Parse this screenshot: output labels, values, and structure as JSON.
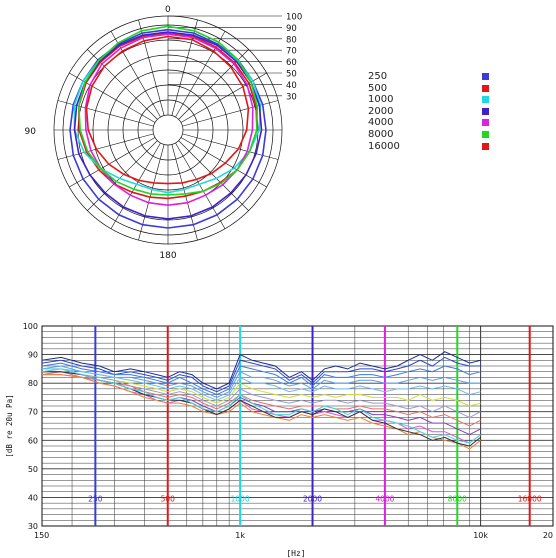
{
  "chart_data": [
    {
      "type": "polar",
      "angle_labels": [
        "0",
        "90",
        "180"
      ],
      "radial_ticks": [
        30,
        40,
        50,
        60,
        70,
        80,
        90,
        100
      ],
      "radial_labels": [
        "30",
        "40",
        "50",
        "60",
        "70",
        "80",
        "90",
        "100"
      ],
      "rlim": [
        0,
        100
      ],
      "legend_placement": "right",
      "angles_deg": [
        0,
        15,
        30,
        45,
        60,
        75,
        90,
        105,
        120,
        135,
        150,
        165,
        180,
        195,
        210,
        225,
        240,
        255,
        270,
        285,
        300,
        315,
        330,
        345,
        360
      ],
      "series": [
        {
          "name": "250",
          "color": "#3b3bd6",
          "values": [
            88,
            88,
            87,
            87,
            86,
            86,
            86,
            86,
            86,
            86,
            86,
            86,
            86,
            86,
            86,
            86,
            86,
            86,
            86,
            86,
            86,
            87,
            87,
            88,
            88
          ]
        },
        {
          "name": "500",
          "color": "#e01818",
          "values": [
            85,
            85,
            84,
            83,
            82,
            80,
            78,
            74,
            70,
            65,
            62,
            60,
            60,
            61,
            63,
            67,
            70,
            74,
            78,
            81,
            83,
            84,
            85,
            85,
            85
          ]
        },
        {
          "name": "1000",
          "color": "#20d8e0",
          "values": [
            86,
            86,
            86,
            86,
            86,
            84,
            80,
            74,
            67,
            60,
            55,
            54,
            55,
            54,
            55,
            60,
            68,
            76,
            82,
            85,
            86,
            86,
            86,
            86,
            86
          ]
        },
        {
          "name": "2000",
          "color": "#4020c8",
          "values": [
            86,
            86,
            86,
            85,
            84,
            83,
            82,
            80,
            79,
            78,
            78,
            78,
            78,
            78,
            78,
            78,
            79,
            81,
            82,
            83,
            84,
            85,
            86,
            86,
            86
          ]
        },
        {
          "name": "4000",
          "color": "#e020e0",
          "values": [
            84,
            84,
            83,
            82,
            80,
            77,
            74,
            72,
            70,
            68,
            66,
            66,
            66,
            66,
            66,
            67,
            68,
            70,
            72,
            75,
            79,
            82,
            83,
            84,
            84
          ]
        },
        {
          "name": "8000",
          "color": "#20d820",
          "values": [
            91,
            90,
            89,
            87,
            84,
            81,
            78,
            74,
            70,
            66,
            62,
            58,
            57,
            58,
            60,
            64,
            68,
            73,
            77,
            81,
            84,
            86,
            88,
            90,
            91
          ]
        },
        {
          "name": "16000",
          "color": "#e01818",
          "values": [
            82,
            82,
            80,
            78,
            76,
            73,
            69,
            64,
            58,
            54,
            50,
            48,
            47,
            48,
            51,
            55,
            60,
            65,
            70,
            74,
            77,
            79,
            80,
            81,
            82
          ]
        }
      ]
    },
    {
      "type": "line",
      "xlabel": "[Hz]",
      "ylabel": "[dB re 20u Pa]",
      "xscale": "log",
      "xlim": [
        150,
        20000
      ],
      "ylim": [
        30,
        100
      ],
      "x_tick_labels": [
        "150",
        "1k",
        "10k",
        "20"
      ],
      "y_ticks": [
        30,
        40,
        50,
        60,
        70,
        80,
        90,
        100
      ],
      "y_tick_labels": [
        "30",
        "40",
        "50",
        "60",
        "70",
        "80",
        "90",
        "100"
      ],
      "grid": true,
      "markers": [
        {
          "label": "250",
          "x": 250,
          "color": "#3b3bd6"
        },
        {
          "label": "500",
          "x": 500,
          "color": "#e01818"
        },
        {
          "label": "1000",
          "x": 1000,
          "color": "#20d8e0"
        },
        {
          "label": "2000",
          "x": 2000,
          "color": "#4020c8"
        },
        {
          "label": "4000",
          "x": 4000,
          "color": "#e020e0"
        },
        {
          "label": "8000",
          "x": 8000,
          "color": "#20d820"
        },
        {
          "label": "16000",
          "x": 16000,
          "color": "#e01818"
        }
      ],
      "x": [
        150,
        180,
        220,
        260,
        300,
        350,
        400,
        450,
        500,
        560,
        630,
        700,
        800,
        900,
        1000,
        1120,
        1250,
        1400,
        1600,
        1800,
        2000,
        2240,
        2500,
        2800,
        3150,
        3550,
        4000,
        4500,
        5000,
        5600,
        6300,
        7100,
        8000,
        9000,
        10000
      ],
      "series": [
        {
          "color": "#1a2a9a",
          "values": [
            88,
            89,
            87,
            86,
            84,
            85,
            84,
            83,
            82,
            84,
            83,
            80,
            78,
            80,
            90,
            88,
            87,
            86,
            82,
            84,
            81,
            85,
            86,
            85,
            87,
            86,
            85,
            86,
            88,
            90,
            88,
            91,
            89,
            87,
            88
          ]
        },
        {
          "color": "#2a4ad0",
          "values": [
            87,
            88,
            86,
            85,
            83,
            84,
            83,
            82,
            81,
            83,
            82,
            79,
            77,
            79,
            88,
            87,
            86,
            85,
            81,
            83,
            80,
            84,
            84,
            84,
            85,
            85,
            84,
            85,
            86,
            88,
            86,
            89,
            87,
            86,
            86
          ]
        },
        {
          "color": "#3a7ae8",
          "values": [
            86,
            87,
            85,
            84,
            83,
            83,
            82,
            81,
            80,
            82,
            80,
            78,
            76,
            78,
            86,
            85,
            84,
            83,
            80,
            82,
            79,
            83,
            82,
            82,
            83,
            83,
            82,
            83,
            84,
            85,
            84,
            86,
            85,
            83,
            84
          ]
        },
        {
          "color": "#5aa0f0",
          "values": [
            85,
            86,
            84,
            83,
            82,
            82,
            81,
            80,
            79,
            80,
            79,
            77,
            75,
            77,
            84,
            82,
            82,
            81,
            79,
            80,
            78,
            81,
            80,
            80,
            81,
            81,
            80,
            80,
            81,
            82,
            81,
            82,
            81,
            80,
            80
          ]
        },
        {
          "color": "#70b8f8",
          "values": [
            85,
            85,
            84,
            83,
            82,
            81,
            80,
            79,
            78,
            79,
            78,
            76,
            74,
            76,
            82,
            80,
            80,
            79,
            77,
            78,
            77,
            79,
            78,
            78,
            79,
            78,
            77,
            78,
            78,
            79,
            78,
            79,
            78,
            76,
            77
          ]
        },
        {
          "color": "#c8e030",
          "values": [
            84,
            85,
            83,
            82,
            81,
            80,
            79,
            78,
            77,
            78,
            77,
            75,
            73,
            75,
            80,
            78,
            77,
            76,
            75,
            76,
            75,
            76,
            75,
            76,
            76,
            75,
            75,
            75,
            74,
            76,
            74,
            75,
            74,
            72,
            73
          ]
        },
        {
          "color": "#9a9ad8",
          "values": [
            84,
            84,
            83,
            82,
            81,
            79,
            78,
            77,
            76,
            77,
            76,
            74,
            72,
            74,
            78,
            76,
            75,
            74,
            73,
            74,
            73,
            74,
            74,
            73,
            74,
            73,
            73,
            72,
            71,
            72,
            70,
            72,
            70,
            68,
            70
          ]
        },
        {
          "color": "#e07070",
          "values": [
            83,
            84,
            82,
            81,
            80,
            79,
            77,
            76,
            75,
            76,
            75,
            73,
            71,
            73,
            76,
            74,
            73,
            72,
            71,
            72,
            72,
            72,
            71,
            71,
            72,
            71,
            71,
            70,
            69,
            70,
            68,
            69,
            67,
            65,
            67
          ]
        },
        {
          "color": "#8040c0",
          "values": [
            84,
            84,
            83,
            81,
            80,
            78,
            77,
            75,
            74,
            75,
            74,
            72,
            70,
            72,
            75,
            73,
            72,
            70,
            70,
            71,
            70,
            71,
            70,
            70,
            71,
            69,
            69,
            68,
            67,
            68,
            66,
            66,
            64,
            62,
            64
          ]
        },
        {
          "color": "#e050e0",
          "values": [
            83,
            83,
            82,
            80,
            79,
            77,
            76,
            74,
            73,
            74,
            73,
            71,
            69,
            71,
            74,
            71,
            70,
            69,
            68,
            70,
            69,
            70,
            69,
            68,
            70,
            67,
            67,
            66,
            64,
            65,
            63,
            63,
            61,
            59,
            62
          ]
        },
        {
          "color": "#f08030",
          "values": [
            83,
            83,
            82,
            80,
            79,
            77,
            75,
            74,
            73,
            73,
            72,
            70,
            69,
            70,
            73,
            70,
            69,
            68,
            67,
            69,
            68,
            69,
            68,
            67,
            68,
            66,
            65,
            64,
            62,
            63,
            61,
            60,
            59,
            57,
            60
          ]
        },
        {
          "color": "#303040",
          "values": [
            84,
            84,
            83,
            81,
            80,
            78,
            76,
            75,
            74,
            74,
            73,
            71,
            69,
            71,
            74,
            72,
            70,
            68,
            68,
            70,
            69,
            71,
            70,
            68,
            70,
            67,
            66,
            64,
            63,
            62,
            60,
            61,
            59,
            58,
            61
          ]
        },
        {
          "color": "#40d8d8",
          "values": [
            84,
            85,
            83,
            81,
            80,
            78,
            77,
            75,
            74,
            75,
            73,
            71,
            70,
            72,
            76,
            73,
            71,
            69,
            69,
            71,
            70,
            72,
            71,
            69,
            71,
            68,
            67,
            66,
            65,
            63,
            61,
            62,
            60,
            59,
            62
          ]
        }
      ]
    }
  ]
}
